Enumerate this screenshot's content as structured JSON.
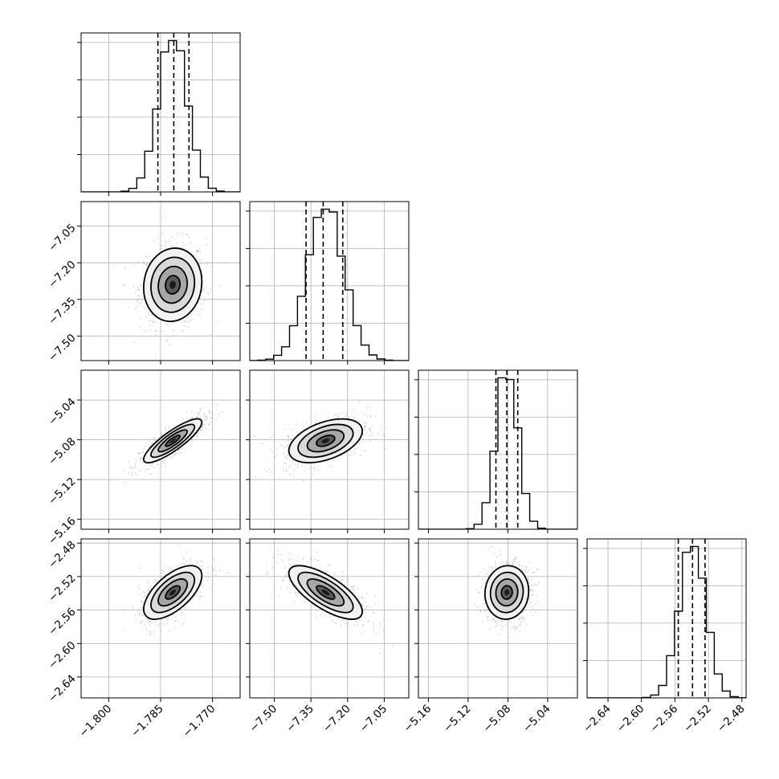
{
  "colors": {
    "line": "#000000",
    "grid": "#b0b0b0",
    "points": "#888888",
    "background": "#ffffff"
  },
  "chart_data": {
    "type": "corner",
    "grid": true,
    "params": [
      {
        "index": 0,
        "range": [
          -1.808,
          -1.762
        ],
        "ticks": [
          -1.8,
          -1.785,
          -1.77
        ],
        "tick_labels": [
          "−1.800",
          "−1.785",
          "−1.770"
        ],
        "mean": -1.7815,
        "sd": 0.0042,
        "q": [
          -1.7858,
          -1.7812,
          -1.7768
        ]
      },
      {
        "index": 1,
        "range": [
          -7.6,
          -6.95
        ],
        "ticks": [
          -7.5,
          -7.35,
          -7.2,
          -7.05
        ],
        "tick_labels": [
          "−7.50",
          "−7.35",
          "−7.20",
          "−7.05"
        ],
        "mean": -7.29,
        "sd": 0.075,
        "q": [
          -7.37,
          -7.3,
          -7.22
        ]
      },
      {
        "index": 2,
        "range": [
          -5.17,
          -5.01
        ],
        "ticks": [
          -5.16,
          -5.12,
          -5.08,
          -5.04
        ],
        "tick_labels": [
          "−5.16",
          "−5.12",
          "−5.08",
          "−5.04"
        ],
        "mean": -5.081,
        "sd": 0.011,
        "q": [
          -5.092,
          -5.081,
          -5.07
        ]
      },
      {
        "index": 3,
        "range": [
          -2.665,
          -2.475
        ],
        "ticks": [
          -2.64,
          -2.6,
          -2.56,
          -2.52,
          -2.48
        ],
        "tick_labels": [
          "−2.64",
          "−2.60",
          "−2.56",
          "−2.52",
          "−2.48"
        ],
        "mean": -2.539,
        "sd": 0.016,
        "q": [
          -2.556,
          -2.539,
          -2.524
        ]
      }
    ],
    "correlations": [
      {
        "i": 1,
        "j": 0,
        "rho": 0.08
      },
      {
        "i": 2,
        "j": 0,
        "rho": 0.85
      },
      {
        "i": 2,
        "j": 1,
        "rho": 0.45
      },
      {
        "i": 3,
        "j": 0,
        "rho": 0.62
      },
      {
        "i": 3,
        "j": 1,
        "rho": -0.72
      },
      {
        "i": 3,
        "j": 2,
        "rho": 0.05
      }
    ],
    "histogram_bins": 20,
    "contour_levels_sigma": [
      0.5,
      1.0,
      1.5,
      2.0
    ],
    "quantiles": [
      0.16,
      0.5,
      0.84
    ]
  }
}
